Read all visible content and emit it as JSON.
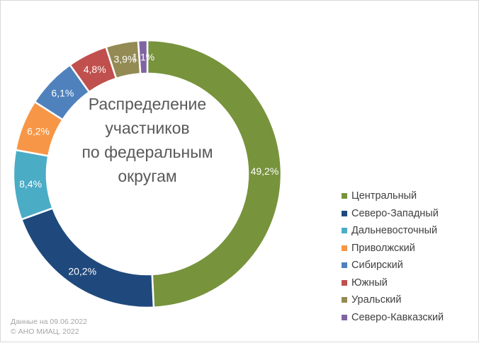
{
  "chart_data": {
    "type": "pie",
    "donut": true,
    "title": "Распределение участников по федеральным округам",
    "title_lines": [
      "Распределение",
      "участников",
      "по федеральным",
      "округам"
    ],
    "categories": [
      "Центральный",
      "Северо-Западный",
      "Дальневосточный",
      "Приволжский",
      "Сибирский",
      "Южный",
      "Уральский",
      "Северо-Кавказский"
    ],
    "values": [
      49.2,
      20.2,
      8.4,
      6.2,
      6.1,
      4.8,
      3.9,
      1.1
    ],
    "value_labels": [
      "49,2%",
      "20,2%",
      "8,4%",
      "6,2%",
      "6,1%",
      "4,8%",
      "3,9%",
      "1,1%"
    ],
    "colors": [
      "#77933c",
      "#1f497d",
      "#4bacc6",
      "#f79646",
      "#4f81bd",
      "#c0504d",
      "#948a54",
      "#8064a2"
    ],
    "legend_position": "right"
  },
  "footer": {
    "date_note": "Данные на 09.06.2022",
    "copyright": "© АНО МИАЦ, 2022"
  }
}
